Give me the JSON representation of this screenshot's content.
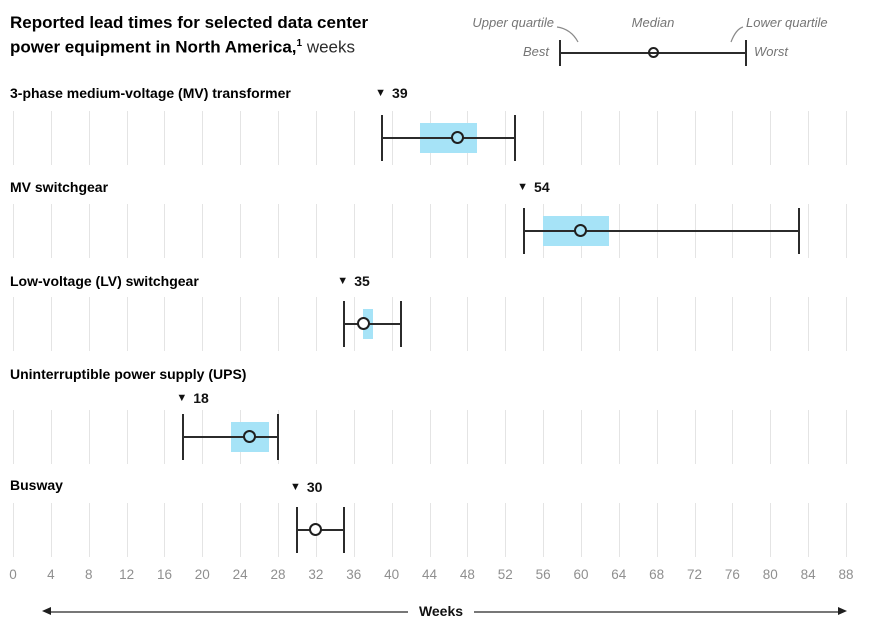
{
  "title": {
    "line1": "Reported lead times for selected data center",
    "line2_bold": "power equipment in North America,",
    "footnote_ref": "1",
    "line2_unit": "weeks"
  },
  "legend": {
    "upper_quartile": "Upper quartile",
    "median": "Median",
    "lower_quartile": "Lower quartile",
    "best": "Best",
    "worst": "Worst"
  },
  "axis": {
    "min": 0,
    "max": 88,
    "step": 4,
    "label": "Weeks"
  },
  "colors": {
    "box_fill": "#A6E3F7",
    "line": "#2B2B2B",
    "gridline": "#E4E4E4",
    "axis_text": "#8F8F8F",
    "legend_text": "#757575",
    "text": "#000000"
  },
  "chart_data": {
    "type": "boxplot",
    "orientation": "horizontal",
    "unit": "weeks",
    "title": "Reported lead times for selected data center power equipment in North America, weeks",
    "xlabel": "Weeks",
    "xlim": [
      0,
      88
    ],
    "x_tick_step": 4,
    "grid": true,
    "legend_position": "top-right",
    "series": [
      {
        "label": "3-phase medium-voltage (MV) transformer",
        "annotation": "39",
        "best": 39,
        "upper_quartile": 43,
        "median": 47,
        "lower_quartile": 49,
        "worst": 53
      },
      {
        "label": "MV switchgear",
        "annotation": "54",
        "best": 54,
        "upper_quartile": 56,
        "median": 60,
        "lower_quartile": 63,
        "worst": 83
      },
      {
        "label": "Low-voltage (LV) switchgear",
        "annotation": "35",
        "best": 35,
        "upper_quartile": 37,
        "median": 37,
        "lower_quartile": 38,
        "worst": 41
      },
      {
        "label": "Uninterruptible power supply (UPS)",
        "annotation": "18",
        "best": 18,
        "upper_quartile": 23,
        "median": 25,
        "lower_quartile": 27,
        "worst": 28
      },
      {
        "label": "Busway",
        "annotation": "30",
        "best": 30,
        "upper_quartile": null,
        "median": 32,
        "lower_quartile": null,
        "worst": 35
      }
    ],
    "annotation_marker": "▼",
    "annotation_meaning": "best (shortest) reported lead time"
  }
}
